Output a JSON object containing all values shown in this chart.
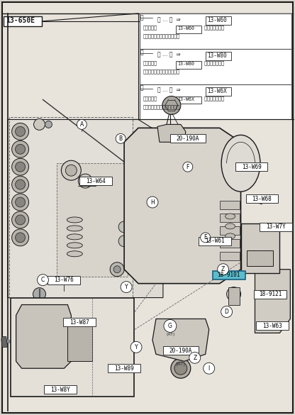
{
  "fig_width": 4.16,
  "fig_height": 5.85,
  "dpi": 100,
  "bg_color": "#d8d4cc",
  "paper_color": "#e8e4dc",
  "line_color": "#1a1a1a",
  "top_label": "13-650E",
  "note1_code": "13-W60",
  "note2_code": "13-W80",
  "note3_code": "13-W6X",
  "highlight_color": "#5bbccc",
  "part_18_9101": "18-9101",
  "part_18_9121": "18-9121",
  "part_20_190A_top": "20-190A",
  "part_20_190A_bot": "20-190A",
  "part_13W64": "13-W64",
  "part_13W69": "13-W69",
  "part_13W68": "13-W68",
  "part_13W7Y": "13-W7Y",
  "part_13W61": "13-W61",
  "part_13W76": "13-W76",
  "part_13W87": "13-W87",
  "part_13W63": "13-W63",
  "part_13W89": "13-W89",
  "part_13W8Y": "13-W8Y"
}
